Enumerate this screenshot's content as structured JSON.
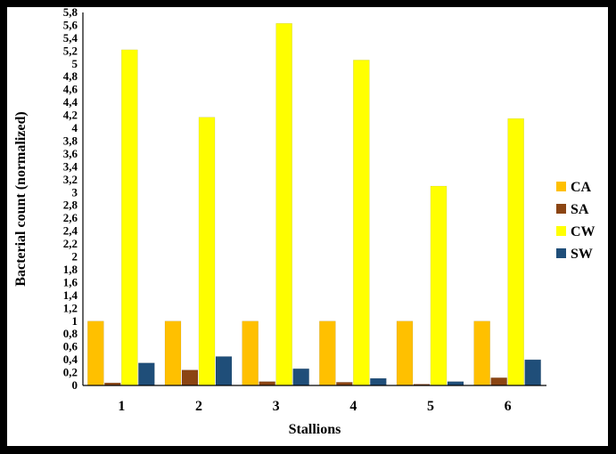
{
  "chart_data": {
    "type": "bar",
    "xlabel": "Stallions",
    "ylabel": "Bacterial count (normalized)",
    "categories": [
      "1",
      "2",
      "3",
      "4",
      "5",
      "6"
    ],
    "series": [
      {
        "name": "CA",
        "color": "#FFC000",
        "values": [
          1,
          1,
          1,
          1,
          1,
          1
        ]
      },
      {
        "name": "SA",
        "color": "#8B4513",
        "values": [
          0.04,
          0.24,
          0.06,
          0.05,
          0.02,
          0.12
        ]
      },
      {
        "name": "CW",
        "color": "#FFFF00",
        "values": [
          5.22,
          4.17,
          5.63,
          5.06,
          3.1,
          4.15
        ]
      },
      {
        "name": "SW",
        "color": "#1F4E79",
        "values": [
          0.35,
          0.45,
          0.26,
          0.11,
          0.06,
          0.4
        ]
      }
    ],
    "ylim": [
      0,
      5.8
    ],
    "yticks": [
      "0",
      "0,2",
      "0,4",
      "0,6",
      "0,8",
      "1",
      "1,2",
      "1,4",
      "1,6",
      "1,8",
      "2",
      "2,2",
      "2,4",
      "2,6",
      "2,8",
      "3",
      "3,2",
      "3,4",
      "3,6",
      "3,8",
      "4",
      "4,2",
      "4,4",
      "4,6",
      "4,8",
      "5",
      "5,2",
      "5,4",
      "5,6",
      "5,8"
    ],
    "legend_position": "right",
    "grid": false
  }
}
